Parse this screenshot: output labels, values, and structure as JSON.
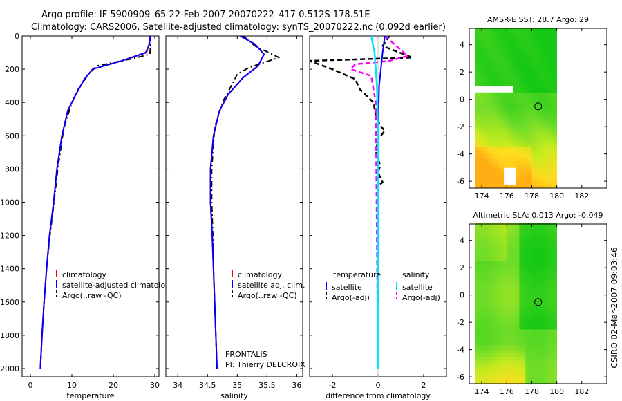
{
  "title": {
    "line1": "Argo profile: IF 5900909_65 22-Feb-2007 20070222_417 0.512S 178.51E",
    "line2": "Climatology: CARS2006. Satellite-adjusted climatology: synTS_20070222.nc (0.092d earlier)"
  },
  "colors": {
    "climatology": "#ff0000",
    "satellite": "#0000ff",
    "argo": "#000000",
    "salinity_satellite": "#00e5ff",
    "salinity_argo": "#ff00ff"
  },
  "chart_data": [
    {
      "type": "line",
      "xlabel": "temperature",
      "xlim": [
        -2,
        31
      ],
      "ylim": [
        2050,
        0
      ],
      "xticks": [
        0,
        10,
        20,
        30
      ],
      "yticks": [
        0,
        200,
        400,
        600,
        800,
        1000,
        1200,
        1400,
        1600,
        1800,
        2000
      ],
      "legend": [
        "climatology",
        "satellite-adjusted climatology",
        "Argo(..raw -QC)"
      ],
      "series": [
        {
          "name": "climatology",
          "points": [
            [
              28.8,
              0
            ],
            [
              28.6,
              50
            ],
            [
              28.0,
              100
            ],
            [
              22.0,
              150
            ],
            [
              15.0,
              200
            ],
            [
              13.0,
              260
            ],
            [
              11.0,
              350
            ],
            [
              9.0,
              450
            ],
            [
              7.6,
              600
            ],
            [
              6.4,
              800
            ],
            [
              5.6,
              1000
            ],
            [
              4.6,
              1200
            ],
            [
              3.9,
              1400
            ],
            [
              3.3,
              1600
            ],
            [
              2.8,
              1800
            ],
            [
              2.4,
              2000
            ]
          ]
        },
        {
          "name": "satellite-adjusted climatology",
          "points": [
            [
              28.9,
              0
            ],
            [
              28.7,
              50
            ],
            [
              27.8,
              100
            ],
            [
              22.0,
              150
            ],
            [
              15.0,
              200
            ],
            [
              13.0,
              260
            ],
            [
              11.0,
              350
            ],
            [
              9.0,
              450
            ],
            [
              7.6,
              600
            ],
            [
              6.4,
              800
            ],
            [
              5.6,
              1000
            ],
            [
              4.6,
              1200
            ],
            [
              3.9,
              1400
            ],
            [
              3.3,
              1600
            ],
            [
              2.8,
              1800
            ],
            [
              2.4,
              2000
            ]
          ]
        },
        {
          "name": "Argo(..raw -QC)",
          "points": [
            [
              29.0,
              0
            ],
            [
              29.0,
              50
            ],
            [
              28.8,
              110
            ],
            [
              24.0,
              140
            ],
            [
              16.0,
              180
            ],
            [
              14.0,
              230
            ],
            [
              11.0,
              340
            ],
            [
              9.5,
              440
            ],
            [
              8.0,
              560
            ],
            [
              6.6,
              800
            ],
            [
              5.7,
              1000
            ],
            [
              4.7,
              1200
            ],
            [
              3.9,
              1400
            ],
            [
              3.3,
              1600
            ],
            [
              2.8,
              1800
            ],
            [
              2.4,
              2000
            ]
          ]
        }
      ]
    },
    {
      "type": "line",
      "xlabel": "salinity",
      "xlim": [
        33.8,
        36.1
      ],
      "ylim": [
        2050,
        0
      ],
      "xticks": [
        34,
        34.5,
        35,
        35.5,
        36
      ],
      "legend": [
        "climatology",
        "satellite adj. clim.",
        "Argo(..raw -QC)"
      ],
      "annotation": [
        "FRONTALIS",
        "PI: Thierry DELCROIX"
      ],
      "series": [
        {
          "name": "climatology",
          "points": [
            [
              35.05,
              0
            ],
            [
              35.3,
              50
            ],
            [
              35.45,
              110
            ],
            [
              35.35,
              180
            ],
            [
              35.1,
              250
            ],
            [
              34.85,
              350
            ],
            [
              34.7,
              450
            ],
            [
              34.6,
              600
            ],
            [
              34.55,
              800
            ],
            [
              34.55,
              1000
            ],
            [
              34.58,
              1200
            ],
            [
              34.6,
              1400
            ],
            [
              34.62,
              1600
            ],
            [
              34.64,
              1800
            ],
            [
              34.66,
              2000
            ]
          ]
        },
        {
          "name": "satellite adj. clim.",
          "points": [
            [
              35.05,
              0
            ],
            [
              35.3,
              50
            ],
            [
              35.45,
              110
            ],
            [
              35.35,
              180
            ],
            [
              35.1,
              250
            ],
            [
              34.85,
              350
            ],
            [
              34.7,
              450
            ],
            [
              34.6,
              600
            ],
            [
              34.55,
              800
            ],
            [
              34.55,
              1000
            ],
            [
              34.58,
              1200
            ],
            [
              34.6,
              1400
            ],
            [
              34.62,
              1600
            ],
            [
              34.64,
              1800
            ],
            [
              34.66,
              2000
            ]
          ]
        },
        {
          "name": "Argo(..raw -QC)",
          "points": [
            [
              35.1,
              0
            ],
            [
              35.3,
              60
            ],
            [
              35.7,
              130
            ],
            [
              35.2,
              190
            ],
            [
              35.0,
              230
            ],
            [
              34.9,
              300
            ],
            [
              34.75,
              400
            ],
            [
              34.62,
              550
            ],
            [
              34.57,
              800
            ],
            [
              34.57,
              1000
            ],
            [
              34.59,
              1200
            ],
            [
              34.6,
              1400
            ],
            [
              34.62,
              1600
            ],
            [
              34.64,
              1800
            ],
            [
              34.66,
              2000
            ]
          ]
        }
      ]
    },
    {
      "type": "line",
      "xlabel": "difference from climatology",
      "xlim": [
        -3,
        3
      ],
      "ylim": [
        2050,
        0
      ],
      "xticks": [
        -2,
        0,
        2
      ],
      "legend_headers": [
        "temperature",
        "salinity"
      ],
      "legend": [
        "satellite",
        "Argo(-adj)",
        "satellite",
        "Argo(-adj)"
      ],
      "series": [
        {
          "name": "temperature satellite",
          "points": [
            [
              0.3,
              0
            ],
            [
              0.2,
              100
            ],
            [
              0.05,
              300
            ],
            [
              0.0,
              600
            ],
            [
              0.0,
              1000
            ],
            [
              0.0,
              2000
            ]
          ]
        },
        {
          "name": "temperature Argo(-adj)",
          "points": [
            [
              0.5,
              0
            ],
            [
              0.2,
              60
            ],
            [
              1.5,
              130
            ],
            [
              -3.0,
              150
            ],
            [
              -2.0,
              200
            ],
            [
              -1.0,
              260
            ],
            [
              -0.8,
              320
            ],
            [
              -0.2,
              400
            ],
            [
              -0.1,
              480
            ],
            [
              0.1,
              540
            ],
            [
              0.3,
              570
            ],
            [
              0.0,
              620
            ],
            [
              -0.1,
              700
            ],
            [
              0.1,
              780
            ],
            [
              0.0,
              820
            ],
            [
              0.2,
              880
            ],
            [
              0.0,
              900
            ],
            [
              0.0,
              2000
            ]
          ]
        },
        {
          "name": "salinity satellite",
          "points": [
            [
              -0.3,
              0
            ],
            [
              -0.15,
              100
            ],
            [
              -0.05,
              300
            ],
            [
              0.0,
              600
            ],
            [
              0.0,
              1000
            ],
            [
              0.0,
              2000
            ]
          ]
        },
        {
          "name": "salinity Argo(-adj)",
          "points": [
            [
              0.3,
              0
            ],
            [
              0.8,
              60
            ],
            [
              1.3,
              120
            ],
            [
              0.5,
              150
            ],
            [
              -1.0,
              170
            ],
            [
              -1.2,
              200
            ],
            [
              -0.3,
              240
            ],
            [
              -0.2,
              320
            ],
            [
              -0.1,
              400
            ],
            [
              0.0,
              2000
            ]
          ]
        }
      ]
    },
    {
      "type": "heatmap",
      "title": "AMSR-E SST: 28.7 Argo: 29",
      "xlim": [
        173,
        184
      ],
      "ylim": [
        -6.5,
        5.2
      ],
      "xticks": [
        174,
        176,
        178,
        180,
        182
      ],
      "yticks": [
        -6,
        -4,
        -2,
        0,
        2,
        4
      ],
      "data_extent_x": [
        173.5,
        180
      ],
      "marker": [
        178.51,
        -0.512
      ]
    },
    {
      "type": "heatmap",
      "title": "Altimetric SLA: 0.013 Argo: -0.049",
      "xlim": [
        173,
        184
      ],
      "ylim": [
        -6.5,
        5.2
      ],
      "xticks": [
        174,
        176,
        178,
        180,
        182
      ],
      "yticks": [
        -6,
        -4,
        -2,
        0,
        2,
        4
      ],
      "data_extent_x": [
        173.5,
        180
      ],
      "marker": [
        178.51,
        -0.512
      ]
    }
  ],
  "footer": "CSIRO 02-Mar-2007 09:03:46"
}
